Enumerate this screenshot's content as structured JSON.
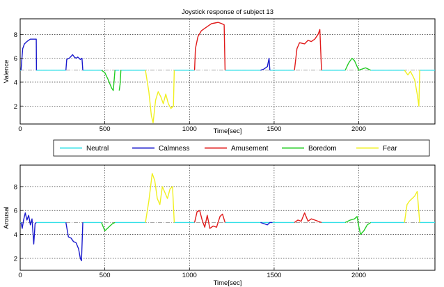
{
  "chart_data": [
    {
      "type": "line",
      "title": "Joystick response of subject 13",
      "xlabel": "Time[sec]",
      "ylabel": "Valence",
      "xlim": [
        0,
        2450
      ],
      "ylim": [
        0.5,
        9.3
      ],
      "xticks": [
        0,
        500,
        1000,
        1500,
        2000
      ],
      "yticks": [
        2,
        4,
        6,
        8
      ],
      "grid": true,
      "baseline": 5,
      "series": [
        {
          "name": "Neutral",
          "color": "#33e0e8",
          "segments": [
            {
              "x": [
                0,
                5
              ],
              "y": [
                5,
                5
              ]
            },
            {
              "x": [
                95,
                270
              ],
              "y": [
                5,
                5
              ]
            },
            {
              "x": [
                370,
                480
              ],
              "y": [
                5,
                5
              ]
            },
            {
              "x": [
                560,
                585
              ],
              "y": [
                5,
                5
              ]
            },
            {
              "x": [
                595,
                740
              ],
              "y": [
                5,
                5
              ]
            },
            {
              "x": [
                910,
                1030
              ],
              "y": [
                5,
                5
              ]
            },
            {
              "x": [
                1210,
                1420
              ],
              "y": [
                5,
                5
              ]
            },
            {
              "x": [
                1475,
                1620
              ],
              "y": [
                5,
                5
              ]
            },
            {
              "x": [
                1780,
                1920
              ],
              "y": [
                5,
                5
              ]
            },
            {
              "x": [
                2070,
                2270
              ],
              "y": [
                5,
                5
              ]
            },
            {
              "x": [
                2360,
                2450
              ],
              "y": [
                5,
                5
              ]
            }
          ]
        },
        {
          "name": "Calmness",
          "color": "#1a1acc",
          "segments": [
            {
              "x": [
                5,
                15,
                25,
                40,
                60,
                75,
                95,
                96
              ],
              "y": [
                5.0,
                6.8,
                7.2,
                7.4,
                7.6,
                7.6,
                7.6,
                5.0
              ]
            },
            {
              "x": [
                270,
                275,
                290,
                310,
                320,
                330,
                340,
                355,
                365,
                370
              ],
              "y": [
                5.0,
                5.9,
                6.0,
                6.3,
                6.1,
                6.0,
                6.1,
                5.9,
                6.0,
                5.0
              ]
            },
            {
              "x": [
                1420,
                1440,
                1460,
                1470,
                1475
              ],
              "y": [
                5.0,
                5.1,
                5.3,
                6.0,
                5.0
              ]
            }
          ]
        },
        {
          "name": "Amusement",
          "color": "#e01a1a",
          "segments": [
            {
              "x": [
                1030,
                1035,
                1050,
                1070,
                1090,
                1110,
                1130,
                1150,
                1170,
                1190,
                1205,
                1210
              ],
              "y": [
                5.0,
                6.8,
                7.8,
                8.3,
                8.5,
                8.7,
                8.9,
                8.95,
                9.0,
                8.9,
                8.8,
                5.0
              ]
            },
            {
              "x": [
                1620,
                1635,
                1650,
                1680,
                1700,
                1720,
                1740,
                1760,
                1770,
                1780
              ],
              "y": [
                5.0,
                6.8,
                7.3,
                7.2,
                7.5,
                7.4,
                7.6,
                8.0,
                8.4,
                5.0
              ]
            }
          ]
        },
        {
          "name": "Boredom",
          "color": "#22cc22",
          "segments": [
            {
              "x": [
                480,
                500,
                520,
                540,
                550,
                560
              ],
              "y": [
                5.0,
                4.8,
                4.2,
                3.5,
                3.3,
                5.0
              ]
            },
            {
              "x": [
                585,
                590,
                595
              ],
              "y": [
                3.3,
                3.8,
                5.0
              ]
            },
            {
              "x": [
                1920,
                1940,
                1960,
                1975,
                2000,
                2040,
                2070
              ],
              "y": [
                5.0,
                5.6,
                6.0,
                5.8,
                5.0,
                5.2,
                5.0
              ]
            }
          ]
        },
        {
          "name": "Fear",
          "color": "#f0f020",
          "segments": [
            {
              "x": [
                740,
                760,
                775,
                785,
                800,
                815,
                830,
                845,
                860,
                875,
                890,
                905,
                910
              ],
              "y": [
                5.0,
                3.2,
                1.2,
                0.6,
                2.5,
                3.2,
                2.8,
                2.2,
                3.0,
                2.2,
                1.8,
                2.0,
                5.0
              ]
            },
            {
              "x": [
                2270,
                2290,
                2305,
                2320,
                2330,
                2345,
                2355,
                2360
              ],
              "y": [
                5.0,
                4.6,
                4.9,
                4.5,
                4.2,
                3.0,
                2.0,
                5.0
              ]
            }
          ]
        }
      ]
    },
    {
      "type": "line",
      "title": "",
      "xlabel": "Time[sec]",
      "ylabel": "Arousal",
      "xlim": [
        0,
        2450
      ],
      "ylim": [
        1,
        9.8
      ],
      "xticks": [
        0,
        500,
        1000,
        1500,
        2000
      ],
      "yticks": [
        2,
        4,
        6,
        8
      ],
      "grid": true,
      "baseline": 5,
      "series": [
        {
          "name": "Neutral",
          "color": "#33e0e8",
          "segments": [
            {
              "x": [
                0,
                5
              ],
              "y": [
                5,
                5
              ]
            },
            {
              "x": [
                95,
                270
              ],
              "y": [
                5,
                5
              ]
            },
            {
              "x": [
                370,
                480
              ],
              "y": [
                5,
                5
              ]
            },
            {
              "x": [
                560,
                740
              ],
              "y": [
                5,
                5
              ]
            },
            {
              "x": [
                910,
                1030
              ],
              "y": [
                5,
                5
              ]
            },
            {
              "x": [
                1210,
                1620
              ],
              "y": [
                5,
                5
              ]
            },
            {
              "x": [
                1780,
                1920
              ],
              "y": [
                5,
                5
              ]
            },
            {
              "x": [
                2070,
                2270
              ],
              "y": [
                5,
                5
              ]
            },
            {
              "x": [
                2360,
                2450
              ],
              "y": [
                5,
                5
              ]
            }
          ]
        },
        {
          "name": "Calmness",
          "color": "#1a1acc",
          "segments": [
            {
              "x": [
                5,
                12,
                20,
                30,
                40,
                50,
                60,
                70,
                80,
                88,
                95
              ],
              "y": [
                5.0,
                4.5,
                5.2,
                5.8,
                5.2,
                5.6,
                4.8,
                5.3,
                3.2,
                4.9,
                5.0
              ]
            },
            {
              "x": [
                270,
                285,
                300,
                315,
                330,
                345,
                355,
                362,
                370
              ],
              "y": [
                5.0,
                3.8,
                3.7,
                3.4,
                3.3,
                2.8,
                2.0,
                1.8,
                5.0
              ]
            },
            {
              "x": [
                1420,
                1440,
                1460,
                1475,
                1490
              ],
              "y": [
                5.0,
                4.9,
                4.8,
                5.0,
                5.0
              ]
            }
          ]
        },
        {
          "name": "Amusement",
          "color": "#e01a1a",
          "segments": [
            {
              "x": [
                1030,
                1045,
                1060,
                1075,
                1090,
                1105,
                1120,
                1140,
                1160,
                1180,
                1195,
                1210
              ],
              "y": [
                5.0,
                5.9,
                6.0,
                5.2,
                4.6,
                5.6,
                4.5,
                4.7,
                4.6,
                5.5,
                5.7,
                5.0
              ]
            },
            {
              "x": [
                1620,
                1640,
                1660,
                1680,
                1700,
                1720,
                1740,
                1760,
                1780
              ],
              "y": [
                5.0,
                5.2,
                5.1,
                5.8,
                5.1,
                5.3,
                5.2,
                5.1,
                5.0
              ]
            }
          ]
        },
        {
          "name": "Boredom",
          "color": "#22cc22",
          "segments": [
            {
              "x": [
                480,
                500,
                515,
                530,
                545,
                560
              ],
              "y": [
                5.0,
                4.3,
                4.5,
                4.7,
                4.9,
                5.0
              ]
            },
            {
              "x": [
                1920,
                1950,
                1975,
                1990,
                2000,
                2010,
                2030,
                2050,
                2070
              ],
              "y": [
                5.0,
                5.2,
                5.3,
                5.5,
                4.7,
                4.0,
                4.3,
                4.8,
                5.0
              ]
            }
          ]
        },
        {
          "name": "Fear",
          "color": "#f0f020",
          "segments": [
            {
              "x": [
                740,
                760,
                780,
                795,
                810,
                825,
                840,
                855,
                870,
                885,
                900,
                910
              ],
              "y": [
                5.0,
                6.8,
                9.1,
                8.5,
                7.0,
                6.5,
                8.0,
                7.5,
                7.0,
                7.8,
                8.0,
                5.0
              ]
            },
            {
              "x": [
                2270,
                2285,
                2300,
                2315,
                2330,
                2345,
                2360
              ],
              "y": [
                5.0,
                6.5,
                6.8,
                7.0,
                7.2,
                7.6,
                5.0
              ]
            }
          ]
        }
      ]
    }
  ],
  "legend": {
    "placement": "between-panels",
    "items": [
      {
        "label": "Neutral",
        "color": "#33e0e8"
      },
      {
        "label": "Calmness",
        "color": "#1a1acc"
      },
      {
        "label": "Amusement",
        "color": "#e01a1a"
      },
      {
        "label": "Boredom",
        "color": "#22cc22"
      },
      {
        "label": "Fear",
        "color": "#f0f020"
      }
    ]
  }
}
